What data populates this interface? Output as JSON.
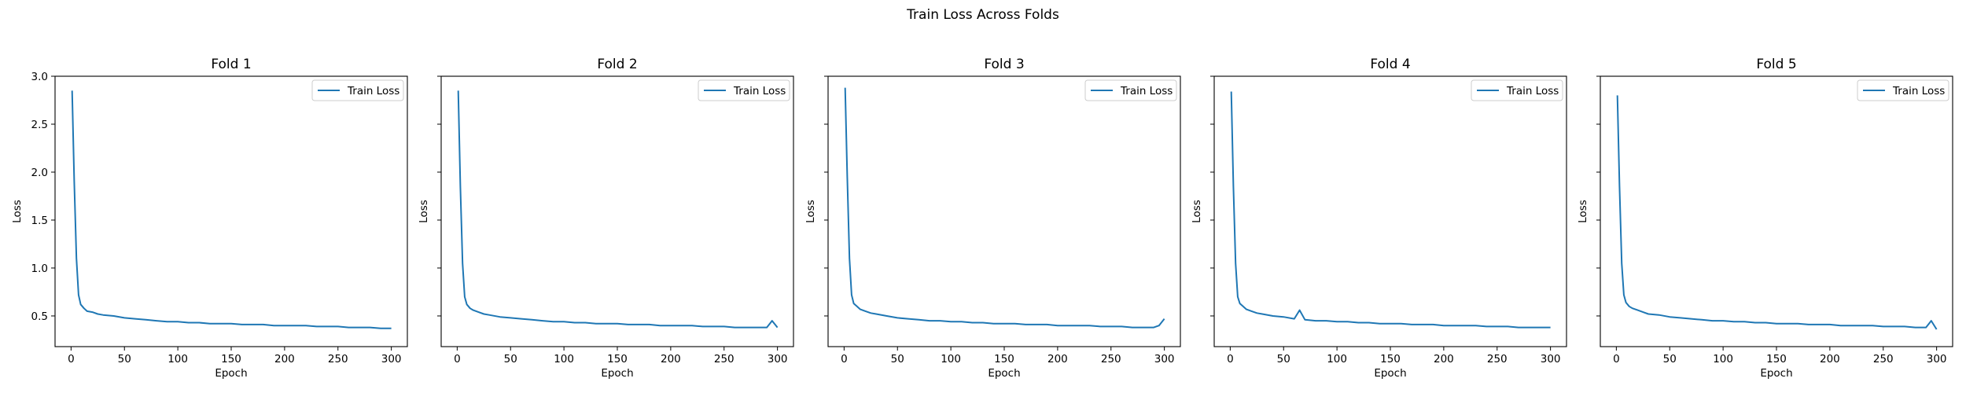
{
  "figure": {
    "suptitle": "Train Loss Across Folds"
  },
  "colors": {
    "series": "#1f77b4",
    "axes": "#000000",
    "legend_border": "#cccccc"
  },
  "chart_data": [
    {
      "type": "line",
      "title": "Fold 1",
      "xlabel": "Epoch",
      "ylabel": "Loss",
      "xlim": [
        -15,
        315
      ],
      "ylim": [
        0.18,
        3.0
      ],
      "xticks": [
        0,
        50,
        100,
        150,
        200,
        250,
        300
      ],
      "yticks": [
        0.5,
        1.0,
        1.5,
        2.0,
        2.5,
        3.0
      ],
      "ytick_labels": [
        "0.5",
        "1.0",
        "1.5",
        "2.0",
        "2.5",
        "3.0"
      ],
      "show_ytick_labels": true,
      "grid": false,
      "legend": "top-right",
      "series": [
        {
          "name": "Train Loss",
          "x": [
            1,
            3,
            5,
            7,
            9,
            12,
            15,
            20,
            25,
            30,
            40,
            50,
            60,
            70,
            80,
            90,
            100,
            110,
            120,
            130,
            140,
            150,
            160,
            170,
            180,
            190,
            200,
            210,
            220,
            230,
            240,
            250,
            260,
            270,
            280,
            290,
            295,
            300
          ],
          "y": [
            2.85,
            1.9,
            1.1,
            0.72,
            0.62,
            0.58,
            0.55,
            0.54,
            0.52,
            0.51,
            0.5,
            0.48,
            0.47,
            0.46,
            0.45,
            0.44,
            0.44,
            0.43,
            0.43,
            0.42,
            0.42,
            0.42,
            0.41,
            0.41,
            0.41,
            0.4,
            0.4,
            0.4,
            0.4,
            0.39,
            0.39,
            0.39,
            0.38,
            0.38,
            0.38,
            0.37,
            0.37,
            0.37
          ]
        }
      ]
    },
    {
      "type": "line",
      "title": "Fold 2",
      "xlabel": "Epoch",
      "ylabel": "Loss",
      "xlim": [
        -15,
        315
      ],
      "ylim": [
        0.18,
        3.0
      ],
      "xticks": [
        0,
        50,
        100,
        150,
        200,
        250,
        300
      ],
      "yticks": [
        0.5,
        1.0,
        1.5,
        2.0,
        2.5,
        3.0
      ],
      "ytick_labels": [
        "0.5",
        "1.0",
        "1.5",
        "2.0",
        "2.5",
        "3.0"
      ],
      "show_ytick_labels": false,
      "grid": false,
      "legend": "top-right",
      "series": [
        {
          "name": "Train Loss",
          "x": [
            1,
            3,
            5,
            7,
            9,
            12,
            15,
            20,
            25,
            30,
            40,
            50,
            60,
            70,
            80,
            90,
            100,
            110,
            120,
            130,
            140,
            150,
            160,
            170,
            180,
            190,
            200,
            210,
            220,
            230,
            240,
            250,
            260,
            270,
            280,
            290,
            295,
            300
          ],
          "y": [
            2.85,
            1.85,
            1.05,
            0.7,
            0.62,
            0.58,
            0.56,
            0.54,
            0.52,
            0.51,
            0.49,
            0.48,
            0.47,
            0.46,
            0.45,
            0.44,
            0.44,
            0.43,
            0.43,
            0.42,
            0.42,
            0.42,
            0.41,
            0.41,
            0.41,
            0.4,
            0.4,
            0.4,
            0.4,
            0.39,
            0.39,
            0.39,
            0.38,
            0.38,
            0.38,
            0.38,
            0.45,
            0.38
          ]
        }
      ]
    },
    {
      "type": "line",
      "title": "Fold 3",
      "xlabel": "Epoch",
      "ylabel": "Loss",
      "xlim": [
        -15,
        315
      ],
      "ylim": [
        0.18,
        3.0
      ],
      "xticks": [
        0,
        50,
        100,
        150,
        200,
        250,
        300
      ],
      "yticks": [
        0.5,
        1.0,
        1.5,
        2.0,
        2.5,
        3.0
      ],
      "ytick_labels": [
        "0.5",
        "1.0",
        "1.5",
        "2.0",
        "2.5",
        "3.0"
      ],
      "show_ytick_labels": false,
      "grid": false,
      "legend": "top-right",
      "series": [
        {
          "name": "Train Loss",
          "x": [
            1,
            3,
            5,
            7,
            9,
            12,
            15,
            20,
            25,
            30,
            40,
            50,
            60,
            70,
            80,
            90,
            100,
            110,
            120,
            130,
            140,
            150,
            160,
            170,
            180,
            190,
            200,
            210,
            220,
            230,
            240,
            250,
            260,
            270,
            280,
            290,
            295,
            300
          ],
          "y": [
            2.88,
            1.95,
            1.1,
            0.72,
            0.63,
            0.6,
            0.57,
            0.55,
            0.53,
            0.52,
            0.5,
            0.48,
            0.47,
            0.46,
            0.45,
            0.45,
            0.44,
            0.44,
            0.43,
            0.43,
            0.42,
            0.42,
            0.42,
            0.41,
            0.41,
            0.41,
            0.4,
            0.4,
            0.4,
            0.4,
            0.39,
            0.39,
            0.39,
            0.38,
            0.38,
            0.38,
            0.4,
            0.47
          ]
        }
      ]
    },
    {
      "type": "line",
      "title": "Fold 4",
      "xlabel": "Epoch",
      "ylabel": "Loss",
      "xlim": [
        -15,
        315
      ],
      "ylim": [
        0.18,
        3.0
      ],
      "xticks": [
        0,
        50,
        100,
        150,
        200,
        250,
        300
      ],
      "yticks": [
        0.5,
        1.0,
        1.5,
        2.0,
        2.5,
        3.0
      ],
      "ytick_labels": [
        "0.5",
        "1.0",
        "1.5",
        "2.0",
        "2.5",
        "3.0"
      ],
      "show_ytick_labels": false,
      "grid": false,
      "legend": "top-right",
      "series": [
        {
          "name": "Train Loss",
          "x": [
            1,
            3,
            5,
            7,
            9,
            12,
            15,
            20,
            25,
            30,
            40,
            50,
            60,
            65,
            70,
            80,
            90,
            100,
            110,
            120,
            130,
            140,
            150,
            160,
            170,
            180,
            190,
            200,
            210,
            220,
            230,
            240,
            250,
            260,
            270,
            280,
            290,
            300
          ],
          "y": [
            2.84,
            1.85,
            1.05,
            0.7,
            0.63,
            0.6,
            0.57,
            0.55,
            0.53,
            0.52,
            0.5,
            0.49,
            0.47,
            0.56,
            0.46,
            0.45,
            0.45,
            0.44,
            0.44,
            0.43,
            0.43,
            0.42,
            0.42,
            0.42,
            0.41,
            0.41,
            0.41,
            0.4,
            0.4,
            0.4,
            0.4,
            0.39,
            0.39,
            0.39,
            0.38,
            0.38,
            0.38,
            0.38
          ]
        }
      ]
    },
    {
      "type": "line",
      "title": "Fold 5",
      "xlabel": "Epoch",
      "ylabel": "Loss",
      "xlim": [
        -15,
        315
      ],
      "ylim": [
        0.18,
        3.0
      ],
      "xticks": [
        0,
        50,
        100,
        150,
        200,
        250,
        300
      ],
      "yticks": [
        0.5,
        1.0,
        1.5,
        2.0,
        2.5,
        3.0
      ],
      "ytick_labels": [
        "0.5",
        "1.0",
        "1.5",
        "2.0",
        "2.5",
        "3.0"
      ],
      "show_ytick_labels": false,
      "grid": false,
      "legend": "top-right",
      "series": [
        {
          "name": "Train Loss",
          "x": [
            1,
            3,
            5,
            7,
            9,
            12,
            15,
            20,
            25,
            30,
            40,
            50,
            60,
            70,
            80,
            90,
            100,
            110,
            120,
            130,
            140,
            150,
            160,
            170,
            180,
            190,
            200,
            210,
            220,
            230,
            240,
            250,
            260,
            270,
            280,
            290,
            295,
            300
          ],
          "y": [
            2.8,
            1.85,
            1.05,
            0.72,
            0.64,
            0.6,
            0.58,
            0.56,
            0.54,
            0.52,
            0.51,
            0.49,
            0.48,
            0.47,
            0.46,
            0.45,
            0.45,
            0.44,
            0.44,
            0.43,
            0.43,
            0.42,
            0.42,
            0.42,
            0.41,
            0.41,
            0.41,
            0.4,
            0.4,
            0.4,
            0.4,
            0.39,
            0.39,
            0.39,
            0.38,
            0.38,
            0.45,
            0.36
          ]
        }
      ]
    }
  ]
}
